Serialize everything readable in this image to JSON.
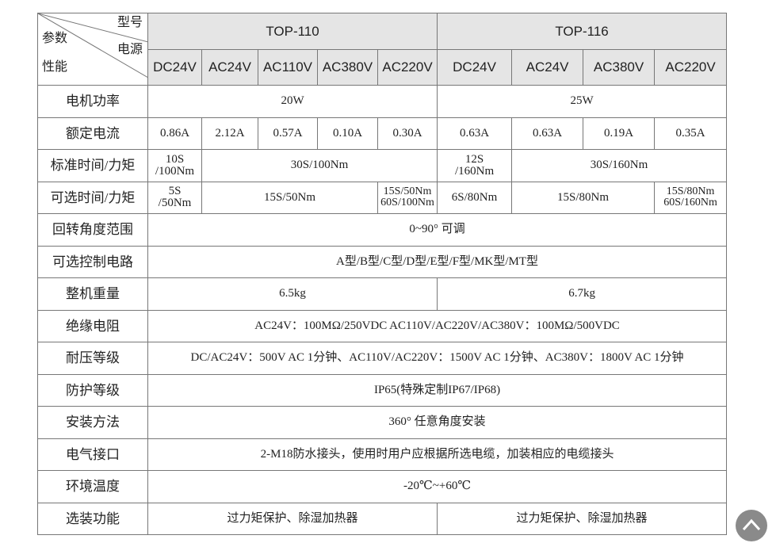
{
  "header": {
    "corner": {
      "model": "型号",
      "params": "参数",
      "power": "电源",
      "performance": "性能"
    },
    "models": [
      "TOP-110",
      "TOP-116"
    ],
    "power_sources": [
      "DC24V",
      "AC24V",
      "AC110V",
      "AC380V",
      "AC220V",
      "DC24V",
      "AC24V",
      "AC380V",
      "AC220V"
    ]
  },
  "table": {
    "rows": [
      {
        "label": "电机功率",
        "cells": [
          "20W",
          "25W"
        ]
      },
      {
        "label": "额定电流",
        "cells": [
          "0.86A",
          "2.12A",
          "0.57A",
          "0.10A",
          "0.30A",
          "0.63A",
          "0.63A",
          "0.19A",
          "0.35A"
        ]
      },
      {
        "label": "标准时间/力矩",
        "cells": [
          "10S\n/100Nm",
          "30S/100Nm",
          "12S\n/160Nm",
          "30S/160Nm"
        ]
      },
      {
        "label": "可选时间/力矩",
        "cells": [
          "5S\n/50Nm",
          "15S/50Nm",
          "15S/50Nm\n60S/100Nm",
          "6S/80Nm",
          "15S/80Nm",
          "15S/80Nm\n60S/160Nm"
        ]
      },
      {
        "label": "回转角度范围",
        "cells": [
          "0~90° 可调"
        ]
      },
      {
        "label": "可选控制电路",
        "cells": [
          "A型/B型/C型/D型/E型/F型/MK型/MT型"
        ]
      },
      {
        "label": "整机重量",
        "cells": [
          "6.5kg",
          "6.7kg"
        ]
      },
      {
        "label": "绝缘电阻",
        "cells": [
          "AC24V：100MΩ/250VDC  AC110V/AC220V/AC380V：100MΩ/500VDC"
        ]
      },
      {
        "label": "耐压等级",
        "cells": [
          "DC/AC24V：500V AC 1分钟、AC110V/AC220V：1500V AC 1分钟、AC380V：1800V AC 1分钟"
        ]
      },
      {
        "label": "防护等级",
        "cells": [
          "IP65(特殊定制IP67/IP68)"
        ]
      },
      {
        "label": "安装方法",
        "cells": [
          "360° 任意角度安装"
        ]
      },
      {
        "label": "电气接口",
        "cells": [
          "2-M18防水接头，使用时用户应根据所选电缆，加装相应的电缆接头"
        ]
      },
      {
        "label": "环境温度",
        "cells": [
          "-20℃~+60℃"
        ]
      },
      {
        "label": "选装功能",
        "cells": [
          "过力矩保护、除湿加热器",
          "过力矩保护、除湿加热器"
        ]
      }
    ]
  }
}
